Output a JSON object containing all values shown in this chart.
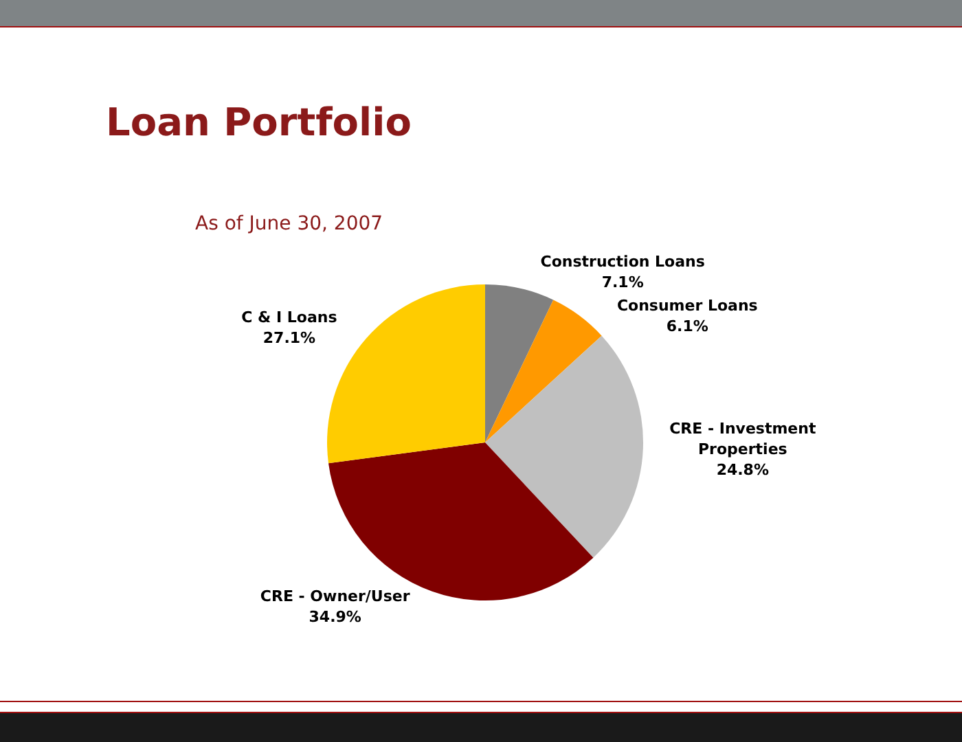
{
  "chart_data": {
    "type": "pie",
    "title": "Loan Portfolio",
    "subtitle": "As of June 30, 2007",
    "categories": [
      "Construction Loans",
      "Consumer Loans",
      "CRE - Investment Properties",
      "CRE - Owner/User",
      "C & I Loans"
    ],
    "values": [
      7.1,
      6.1,
      24.8,
      34.9,
      27.1
    ],
    "colors": [
      "#808080",
      "#ff9900",
      "#c0c0c0",
      "#800000",
      "#ffcc00"
    ],
    "value_labels": [
      "7.1%",
      "6.1%",
      "24.8%",
      "34.9%",
      "27.1%"
    ]
  }
}
